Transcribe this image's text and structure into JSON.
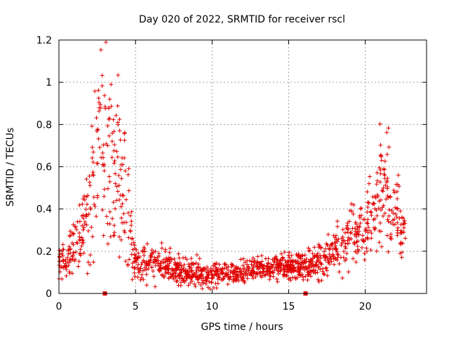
{
  "chart_data": {
    "type": "scatter",
    "title": "Day 020 of 2022, SRMTID for receiver rscl",
    "xlabel": "GPS time / hours",
    "ylabel": "SRMTID / TECUs",
    "xlim": [
      0,
      24
    ],
    "ylim": [
      0,
      1.2
    ],
    "x_ticks": [
      0,
      5,
      10,
      15,
      20
    ],
    "x_tick_labels": [
      "0",
      "5",
      "10",
      "15",
      "20"
    ],
    "y_ticks": [
      0,
      0.2,
      0.4,
      0.6,
      0.8,
      1.0,
      1.2
    ],
    "y_tick_labels": [
      "0",
      "0.2",
      "0.4",
      "0.6",
      "0.8",
      "1",
      "1.2"
    ],
    "grid": true,
    "marker": "plus",
    "color": "#e00000",
    "baseline_markers_x": [
      3.0,
      16.1
    ],
    "envelope": {
      "description_hours_to_tecu_center_and_spread": [
        [
          0.0,
          0.16,
          0.06
        ],
        [
          0.5,
          0.14,
          0.06
        ],
        [
          1.0,
          0.25,
          0.12
        ],
        [
          1.5,
          0.3,
          0.12
        ],
        [
          2.0,
          0.4,
          0.2
        ],
        [
          2.5,
          0.62,
          0.3
        ],
        [
          3.0,
          0.75,
          0.35
        ],
        [
          3.5,
          0.65,
          0.35
        ],
        [
          4.0,
          0.55,
          0.3
        ],
        [
          4.5,
          0.35,
          0.25
        ],
        [
          5.0,
          0.15,
          0.06
        ],
        [
          6.0,
          0.14,
          0.06
        ],
        [
          7.0,
          0.13,
          0.06
        ],
        [
          8.0,
          0.1,
          0.05
        ],
        [
          9.0,
          0.1,
          0.05
        ],
        [
          10.0,
          0.08,
          0.04
        ],
        [
          11.0,
          0.1,
          0.04
        ],
        [
          12.0,
          0.1,
          0.04
        ],
        [
          13.0,
          0.12,
          0.04
        ],
        [
          14.0,
          0.12,
          0.04
        ],
        [
          15.0,
          0.13,
          0.05
        ],
        [
          16.0,
          0.13,
          0.05
        ],
        [
          17.0,
          0.15,
          0.06
        ],
        [
          18.0,
          0.2,
          0.08
        ],
        [
          19.0,
          0.28,
          0.1
        ],
        [
          20.0,
          0.32,
          0.12
        ],
        [
          21.0,
          0.45,
          0.22
        ],
        [
          21.5,
          0.55,
          0.25
        ],
        [
          22.0,
          0.35,
          0.15
        ],
        [
          22.7,
          0.28,
          0.08
        ]
      ],
      "n_points": 1400,
      "seed": 20
    }
  }
}
